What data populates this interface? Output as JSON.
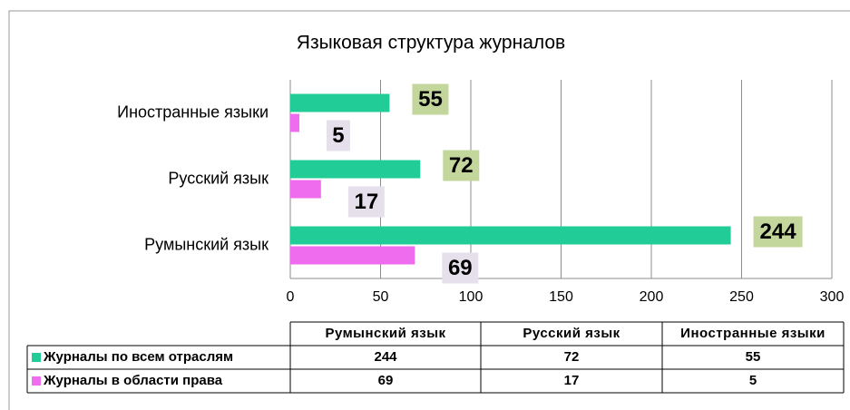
{
  "chart_data": {
    "type": "bar",
    "orientation": "horizontal",
    "title": "Языковая структура журналов",
    "categories": [
      "Румынский язык",
      "Русский язык",
      "Иностранные языки"
    ],
    "series": [
      {
        "name": "Журналы по всем отраслям",
        "color": "#21cc97",
        "label_bg": "#c3d69b",
        "values": [
          244,
          72,
          55
        ]
      },
      {
        "name": "Журналы в области права",
        "color": "#ee6ced",
        "label_bg": "#e6e0ec",
        "values": [
          69,
          17,
          5
        ]
      }
    ],
    "xlim": [
      0,
      300
    ],
    "xticks": [
      0,
      50,
      100,
      150,
      200,
      250,
      300
    ],
    "grid": true,
    "data_table": true
  }
}
